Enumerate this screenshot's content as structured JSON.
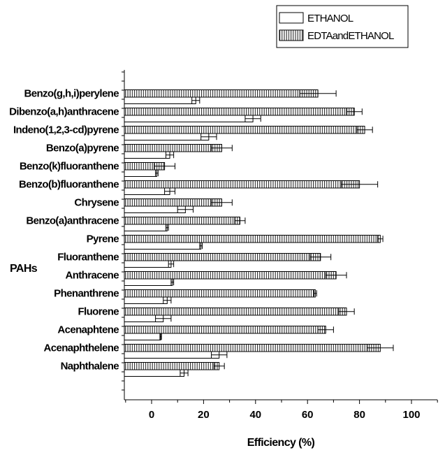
{
  "chart_data": {
    "type": "bar",
    "orientation": "horizontal",
    "title": "",
    "xlabel": "Efficiency (%)",
    "ylabel": "PAHs",
    "xlim": [
      -10,
      110
    ],
    "xticks": [
      0,
      20,
      40,
      60,
      80,
      100
    ],
    "grid": false,
    "legend_position": "top-right",
    "categories": [
      "Benzo(g,h,i)perylene",
      "Dibenzo(a,h)anthracene",
      "Indeno(1,2,3-cd)pyrene",
      "Benzo(a)pyrene",
      "Benzo(k)fluoranthene",
      "Benzo(b)fluoranthene",
      "Chrysene",
      "Benzo(a)anthracene",
      "Pyrene",
      "Fluoranthene",
      "Anthracene",
      "Phenanthrene",
      "Fluorene",
      "Acenaphtene",
      "Acenaphthelene",
      "Naphthalene"
    ],
    "series": [
      {
        "name": "ETHANOL",
        "pattern": "blank",
        "values": [
          17,
          39,
          22,
          7,
          2,
          7,
          13,
          6,
          19,
          7.5,
          8,
          6,
          4.5,
          3.5,
          26,
          12.5
        ],
        "errors": [
          1.5,
          3,
          3,
          1.5,
          0.5,
          2,
          3,
          0.5,
          0.5,
          1,
          0.5,
          1.5,
          3,
          0.3,
          3,
          1.5
        ]
      },
      {
        "name": "EDTAandETHANOL",
        "pattern": "vertical-lines",
        "values": [
          64,
          78,
          82,
          27,
          5,
          80,
          27,
          34,
          88,
          65,
          71,
          63,
          75,
          67,
          88,
          26
        ],
        "errors": [
          7,
          3,
          3,
          4,
          4,
          7,
          4,
          2,
          1,
          4,
          4,
          0.5,
          3,
          3,
          5,
          2
        ]
      }
    ]
  }
}
